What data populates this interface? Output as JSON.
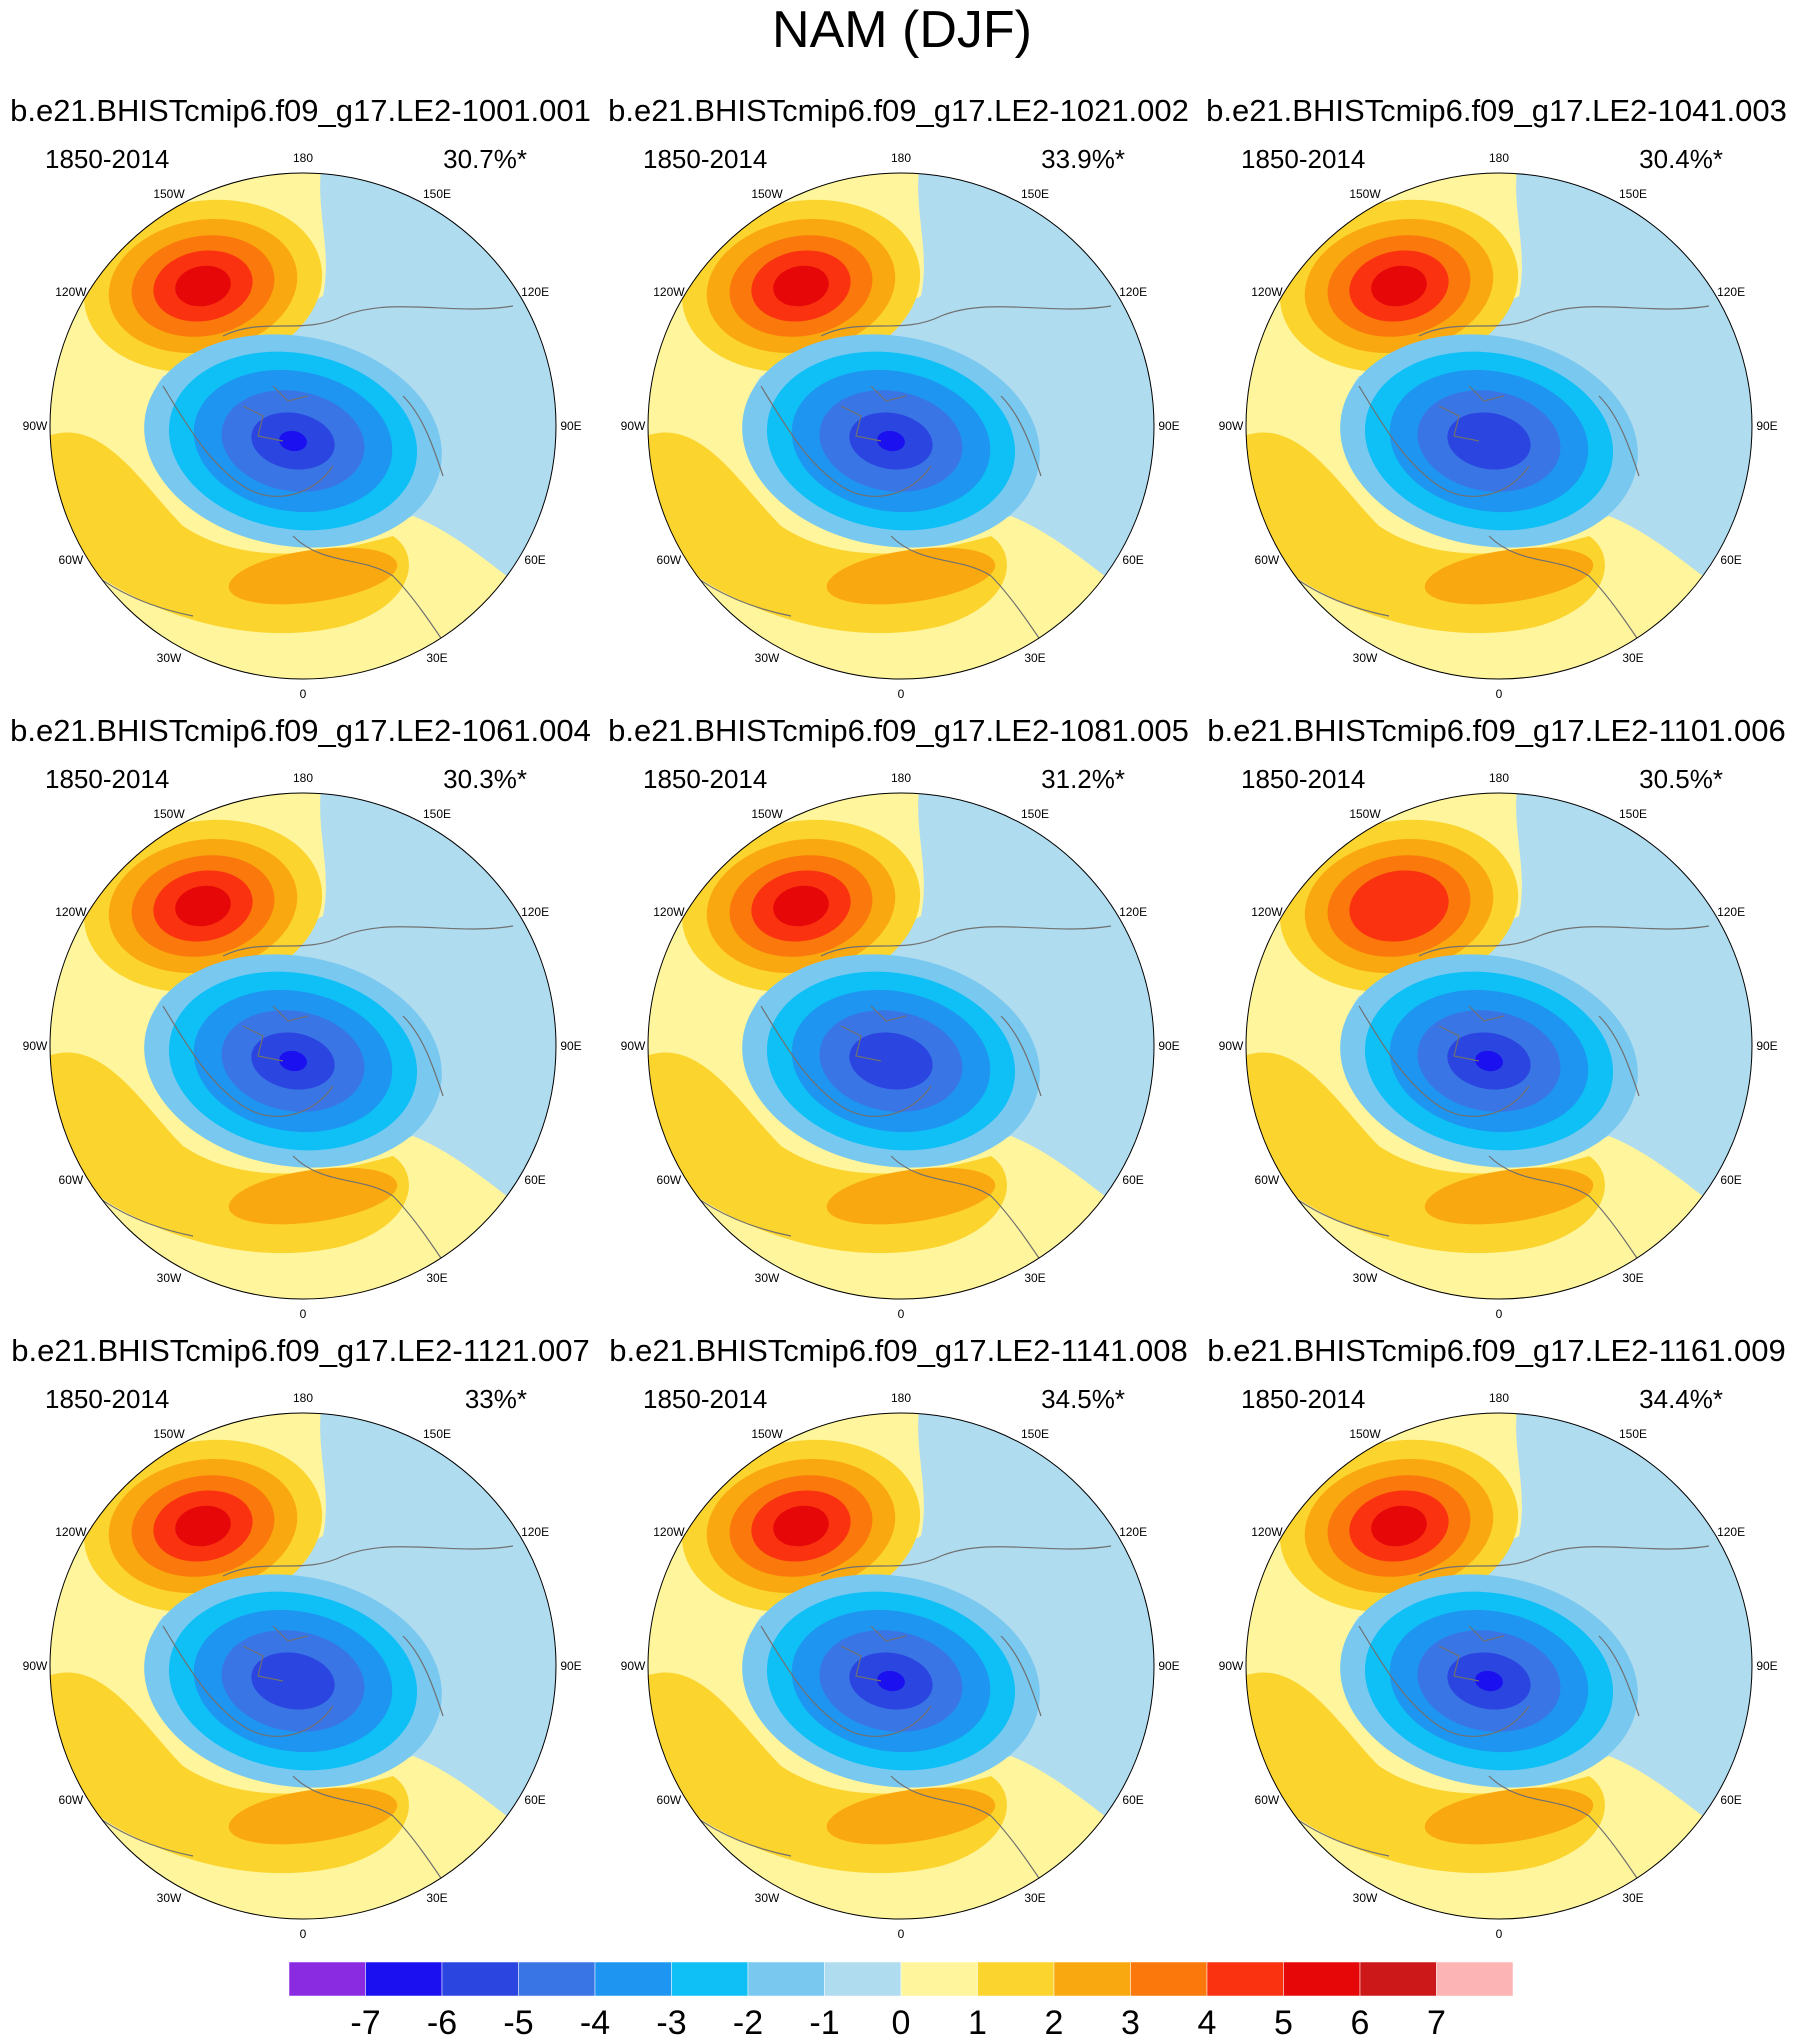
{
  "title": "NAM (DJF)",
  "colors": {
    "blue_dark_violet": "#8a2be2",
    "blue_6": "#1a10f0",
    "blue_5": "#2b45e0",
    "blue_4": "#3a75e6",
    "blue_3": "#1e95f0",
    "blue_2": "#0ec0f5",
    "blue_1": "#78c8f0",
    "blue_0": "#b0dcf0",
    "yellow_0": "#fff59c",
    "yellow_1": "#fcd42e",
    "orange_2": "#faa80f",
    "orange_3": "#fa780c",
    "red_4": "#fa3210",
    "red_5": "#e60808",
    "red_6": "#cc1818",
    "pink_7": "#fcb4b4",
    "coast": "#707070"
  },
  "panels": [
    {
      "title": "b.e21.BHISTcmip6.f09_g17.LE2-1001.001",
      "period": "1850-2014",
      "pct_label": "30.7%*",
      "pct": 30.7
    },
    {
      "title": "b.e21.BHISTcmip6.f09_g17.LE2-1021.002",
      "period": "1850-2014",
      "pct_label": "33.9%*",
      "pct": 33.9
    },
    {
      "title": "b.e21.BHISTcmip6.f09_g17.LE2-1041.003",
      "period": "1850-2014",
      "pct_label": "30.4%*",
      "pct": 30.4
    },
    {
      "title": "b.e21.BHISTcmip6.f09_g17.LE2-1061.004",
      "period": "1850-2014",
      "pct_label": "30.3%*",
      "pct": 30.3
    },
    {
      "title": "b.e21.BHISTcmip6.f09_g17.LE2-1081.005",
      "period": "1850-2014",
      "pct_label": "31.2%*",
      "pct": 31.2
    },
    {
      "title": "b.e21.BHISTcmip6.f09_g17.LE2-1101.006",
      "period": "1850-2014",
      "pct_label": "30.5%*",
      "pct": 30.5
    },
    {
      "title": "b.e21.BHISTcmip6.f09_g17.LE2-1121.007",
      "period": "1850-2014",
      "pct_label": "33%*",
      "pct": 33.0
    },
    {
      "title": "b.e21.BHISTcmip6.f09_g17.LE2-1141.008",
      "period": "1850-2014",
      "pct_label": "34.5%*",
      "pct": 34.5
    },
    {
      "title": "b.e21.BHISTcmip6.f09_g17.LE2-1161.009",
      "period": "1850-2014",
      "pct_label": "34.4%*",
      "pct": 34.4
    }
  ],
  "lon_labels": [
    "180",
    "150E",
    "120E",
    "90E",
    "60E",
    "30E",
    "0",
    "30W",
    "60W",
    "90W",
    "120W",
    "150W"
  ],
  "chart_data": {
    "type": "heatmap",
    "title": "NAM (DJF)",
    "projection": "north polar stereographic",
    "period": "1850-2014",
    "colorbar": {
      "labels": [
        "-7",
        "-6",
        "-5",
        "-4",
        "-3",
        "-2",
        "-1",
        "0",
        "1",
        "2",
        "3",
        "4",
        "5",
        "6",
        "7"
      ],
      "levels": [
        -7,
        -6,
        -5,
        -4,
        -3,
        -2,
        -1,
        0,
        1,
        2,
        3,
        4,
        5,
        6,
        7
      ],
      "colors": [
        "#8a2be2",
        "#1a10f0",
        "#2b45e0",
        "#3a75e6",
        "#1e95f0",
        "#0ec0f5",
        "#78c8f0",
        "#b0dcf0",
        "#fff59c",
        "#fcd42e",
        "#faa80f",
        "#fa780c",
        "#fa3210",
        "#e60808",
        "#cc1818",
        "#fcb4b4"
      ]
    },
    "members": [
      {
        "name": "LE2-1001.001",
        "explained_variance_pct": 30.7,
        "pacific_max": 5,
        "arctic_min": -6
      },
      {
        "name": "LE2-1021.002",
        "explained_variance_pct": 33.9,
        "pacific_max": 5,
        "arctic_min": -6
      },
      {
        "name": "LE2-1041.003",
        "explained_variance_pct": 30.4,
        "pacific_max": 5,
        "arctic_min": -5
      },
      {
        "name": "LE2-1061.004",
        "explained_variance_pct": 30.3,
        "pacific_max": 5,
        "arctic_min": -6
      },
      {
        "name": "LE2-1081.005",
        "explained_variance_pct": 31.2,
        "pacific_max": 5,
        "arctic_min": -5
      },
      {
        "name": "LE2-1101.006",
        "explained_variance_pct": 30.5,
        "pacific_max": 4,
        "arctic_min": -6
      },
      {
        "name": "LE2-1121.007",
        "explained_variance_pct": 33.0,
        "pacific_max": 6,
        "arctic_min": -5
      },
      {
        "name": "LE2-1141.008",
        "explained_variance_pct": 34.5,
        "pacific_max": 6,
        "arctic_min": -6
      },
      {
        "name": "LE2-1161.009",
        "explained_variance_pct": 34.4,
        "pacific_max": 6,
        "arctic_min": -6
      }
    ]
  }
}
